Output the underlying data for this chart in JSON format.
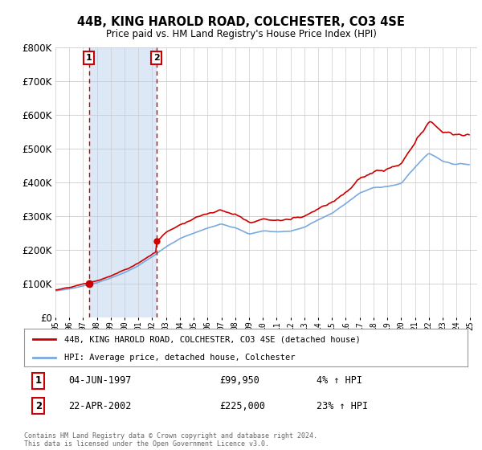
{
  "title": "44B, KING HAROLD ROAD, COLCHESTER, CO3 4SE",
  "subtitle": "Price paid vs. HM Land Registry's House Price Index (HPI)",
  "legend_line1": "44B, KING HAROLD ROAD, COLCHESTER, CO3 4SE (detached house)",
  "legend_line2": "HPI: Average price, detached house, Colchester",
  "transaction1_date": "04-JUN-1997",
  "transaction1_price": 99950,
  "transaction1_label": "4% ↑ HPI",
  "transaction2_date": "22-APR-2002",
  "transaction2_price": 225000,
  "transaction2_label": "23% ↑ HPI",
  "transaction1_year": 1997.42,
  "transaction2_year": 2002.31,
  "ylim": [
    0,
    800000
  ],
  "xlim_start": 1995.0,
  "xlim_end": 2025.5,
  "price_color": "#cc0000",
  "hpi_color": "#7aaadd",
  "shade_color": "#dce8f5",
  "bg_color": "#ffffff",
  "footer": "Contains HM Land Registry data © Crown copyright and database right 2024.\nThis data is licensed under the Open Government Licence v3.0."
}
